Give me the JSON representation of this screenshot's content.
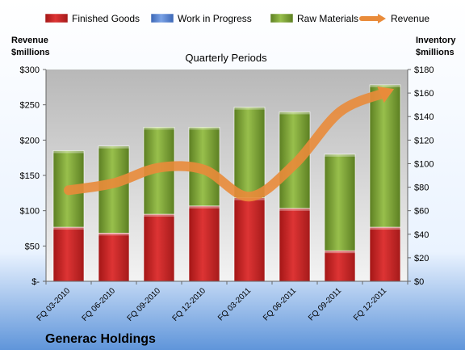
{
  "chart_data": {
    "type": "bar",
    "subtitle": "Quarterly Periods",
    "categories": [
      "FQ 03-2010",
      "FQ 06-2010",
      "FQ 09-2010",
      "FQ 12-2010",
      "FQ 03-2011",
      "FQ 06-2011",
      "FQ 09-2011",
      "FQ 12-2011"
    ],
    "y_left": {
      "title_lines": [
        "Revenue",
        "$millions"
      ],
      "range": [
        0,
        300
      ],
      "ticks": [
        0,
        50,
        100,
        150,
        200,
        250,
        300
      ],
      "tick_labels": [
        "$-",
        "$50",
        "$100",
        "$150",
        "$200",
        "$250",
        "$300"
      ]
    },
    "y_right": {
      "title_lines": [
        "Inventory",
        "$millions"
      ],
      "range": [
        0,
        180
      ],
      "ticks": [
        0,
        20,
        40,
        60,
        80,
        100,
        120,
        140,
        160,
        180
      ],
      "tick_labels": [
        "$0",
        "$20",
        "$40",
        "$60",
        "$80",
        "$100",
        "$120",
        "$140",
        "$160",
        "$180"
      ]
    },
    "series": [
      {
        "name": "Finished Goods",
        "chart_type": "stacked-bar",
        "axis": "right",
        "color": "#cc2a2a",
        "values": [
          46,
          41,
          57,
          64,
          71,
          62,
          26,
          46
        ]
      },
      {
        "name": "Work in Progress",
        "chart_type": "stacked-bar",
        "axis": "right",
        "color": "#5b83c9",
        "values": [
          0,
          0,
          0,
          0,
          0,
          0,
          0,
          0
        ]
      },
      {
        "name": "Raw Materials",
        "chart_type": "stacked-bar",
        "axis": "right",
        "color": "#86ab3c",
        "values": [
          65,
          74,
          74,
          67,
          77,
          82,
          82,
          121
        ]
      },
      {
        "name": "Revenue",
        "chart_type": "line",
        "axis": "left",
        "color": "#e98b3a",
        "values": [
          129,
          139,
          161,
          158,
          120,
          166,
          240,
          267
        ]
      }
    ],
    "legend_position": "top",
    "grid": false,
    "footer_title": "Generac Holdings"
  }
}
